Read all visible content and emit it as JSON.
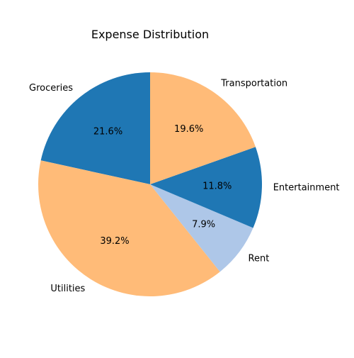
{
  "chart_data": {
    "type": "pie",
    "title": "Expense Distribution",
    "slices": [
      {
        "label": "Groceries",
        "value": 21.6,
        "pct_text": "21.6%",
        "color": "#1f77b4"
      },
      {
        "label": "Utilities",
        "value": 39.2,
        "pct_text": "39.2%",
        "color": "#ffbb78"
      },
      {
        "label": "Rent",
        "value": 7.9,
        "pct_text": "7.9%",
        "color": "#aec7e8"
      },
      {
        "label": "Entertainment",
        "value": 11.8,
        "pct_text": "11.8%",
        "color": "#1f77b4"
      },
      {
        "label": "Transportation",
        "value": 19.6,
        "pct_text": "19.6%",
        "color": "#ffbb78"
      }
    ],
    "start_angle_deg": 90,
    "direction": "counterclockwise",
    "legend": "none"
  }
}
